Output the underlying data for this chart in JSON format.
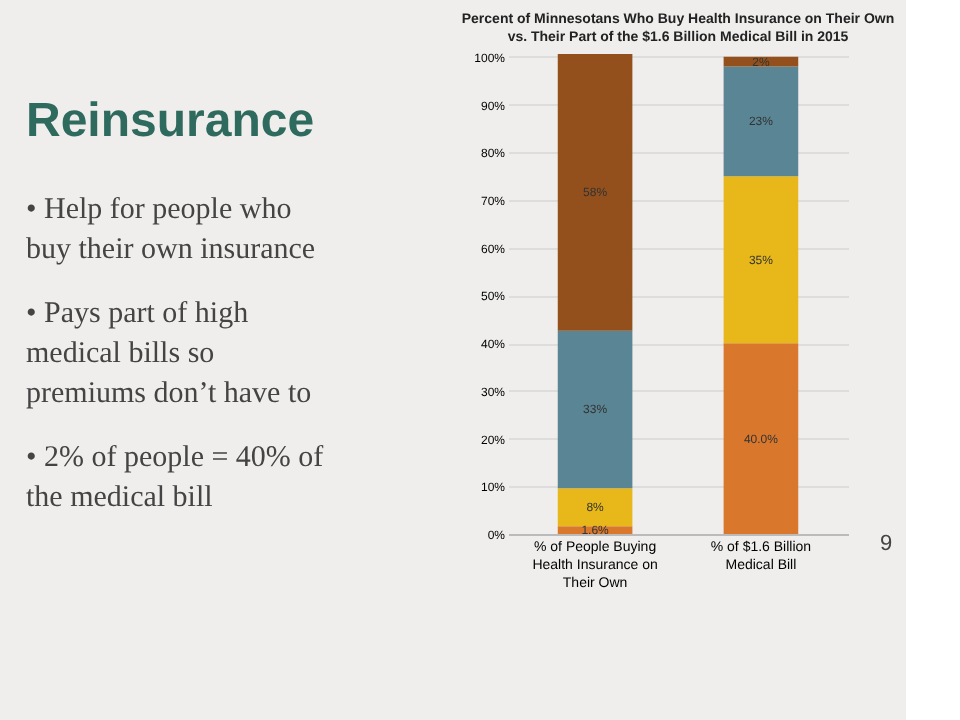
{
  "chart_data": [
    {
      "type": "other",
      "title": "Reinsurance",
      "annotations": [
        "• Help for people who buy their own insurance",
        "• Pays part of high medical bills so premiums don’t have to",
        "• 2% of people = 40% of the medical bill"
      ]
    },
    {
      "type": "bar",
      "stacked": true,
      "title": "Percent of Minnesotans Who Buy Health Insurance on Their Own vs. Their Part of the $1.6 Billion Medical Bill in 2015",
      "categories": [
        "% of People Buying Health Insurance on Their Own",
        "% of $1.6 Billion Medical Bill"
      ],
      "series": [
        {
          "color": "#d9782d",
          "values": [
            1.6,
            40
          ],
          "value_labels": [
            "1.6%",
            "40.0%"
          ]
        },
        {
          "color": "#e8b81a",
          "values": [
            8,
            35
          ],
          "value_labels": [
            "8%",
            "35%"
          ]
        },
        {
          "color": "#5a8594",
          "values": [
            33,
            23
          ],
          "value_labels": [
            "33%",
            "23%"
          ]
        },
        {
          "color": "#94501c",
          "values": [
            58,
            2
          ],
          "value_labels": [
            "58%",
            "2%"
          ]
        }
      ],
      "ylim": [
        0,
        100.6
      ],
      "yticks": [
        {
          "value": 0,
          "label": "0%"
        },
        {
          "value": 10,
          "label": "10%"
        },
        {
          "value": 20,
          "label": "20%"
        },
        {
          "value": 30,
          "label": "30%"
        },
        {
          "value": 40,
          "label": "40%"
        },
        {
          "value": 50,
          "label": "50%"
        },
        {
          "value": 60,
          "label": "60%"
        },
        {
          "value": 70,
          "label": "70%"
        },
        {
          "value": 80,
          "label": "80%"
        },
        {
          "value": 90,
          "label": "90%"
        },
        {
          "value": 100,
          "label": "100%"
        }
      ],
      "grid": "y",
      "annotations": [
        "9"
      ]
    }
  ]
}
